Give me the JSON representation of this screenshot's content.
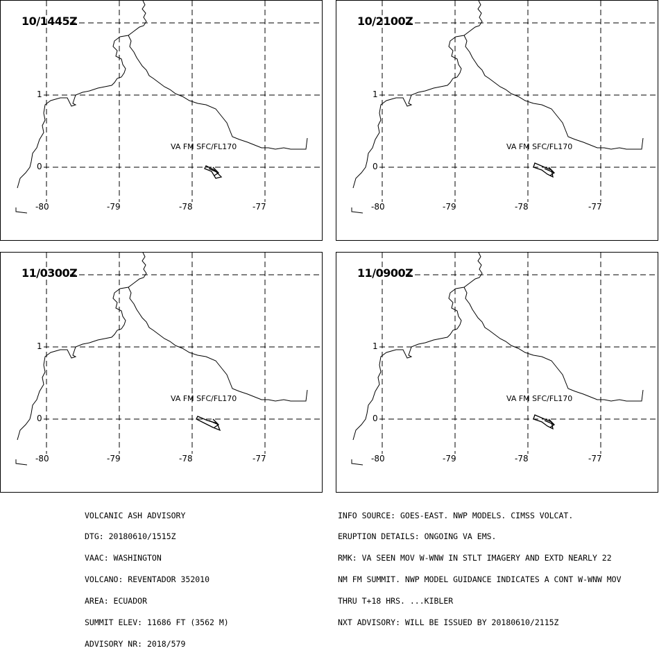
{
  "panels": [
    {
      "time": "10/1445Z",
      "va_label": "VA FM SFC/FL170",
      "plume": 1
    },
    {
      "time": "10/2100Z",
      "va_label": "VA FM SFC/FL170",
      "plume": 2
    },
    {
      "time": "11/0300Z",
      "va_label": "VA FM SFC/FL170",
      "plume": 3
    },
    {
      "time": "11/0900Z",
      "va_label": "VA FM SFC/FL170",
      "plume": 2
    }
  ],
  "map": {
    "lat_labels": [
      "1",
      "0"
    ],
    "lon_labels": [
      "-80",
      "-79",
      "-78",
      "-77"
    ],
    "line_color": "#000000",
    "background": "#ffffff"
  },
  "advisory_left": [
    "VOLCANIC ASH ADVISORY",
    "DTG: 20180610/1515Z",
    "VAAC: WASHINGTON",
    "VOLCANO: REVENTADOR 352010",
    "AREA: ECUADOR",
    "SUMMIT ELEV: 11686 FT (3562 M)",
    "ADVISORY NR: 2018/579"
  ],
  "advisory_right": [
    "INFO SOURCE: GOES-EAST. NWP MODELS. CIMSS VOLCAT.",
    "ERUPTION DETAILS: ONGOING VA EMS.",
    "RMK: VA SEEN MOV W-WNW IN STLT IMAGERY AND EXTD NEARLY 22",
    "NM FM SUMMIT. NWP MODEL GUIDANCE INDICATES A CONT W-WNW MOV",
    "THRU T+18 HRS. ...KIBLER",
    "NXT ADVISORY: WILL BE ISSUED BY 20180610/2115Z"
  ]
}
